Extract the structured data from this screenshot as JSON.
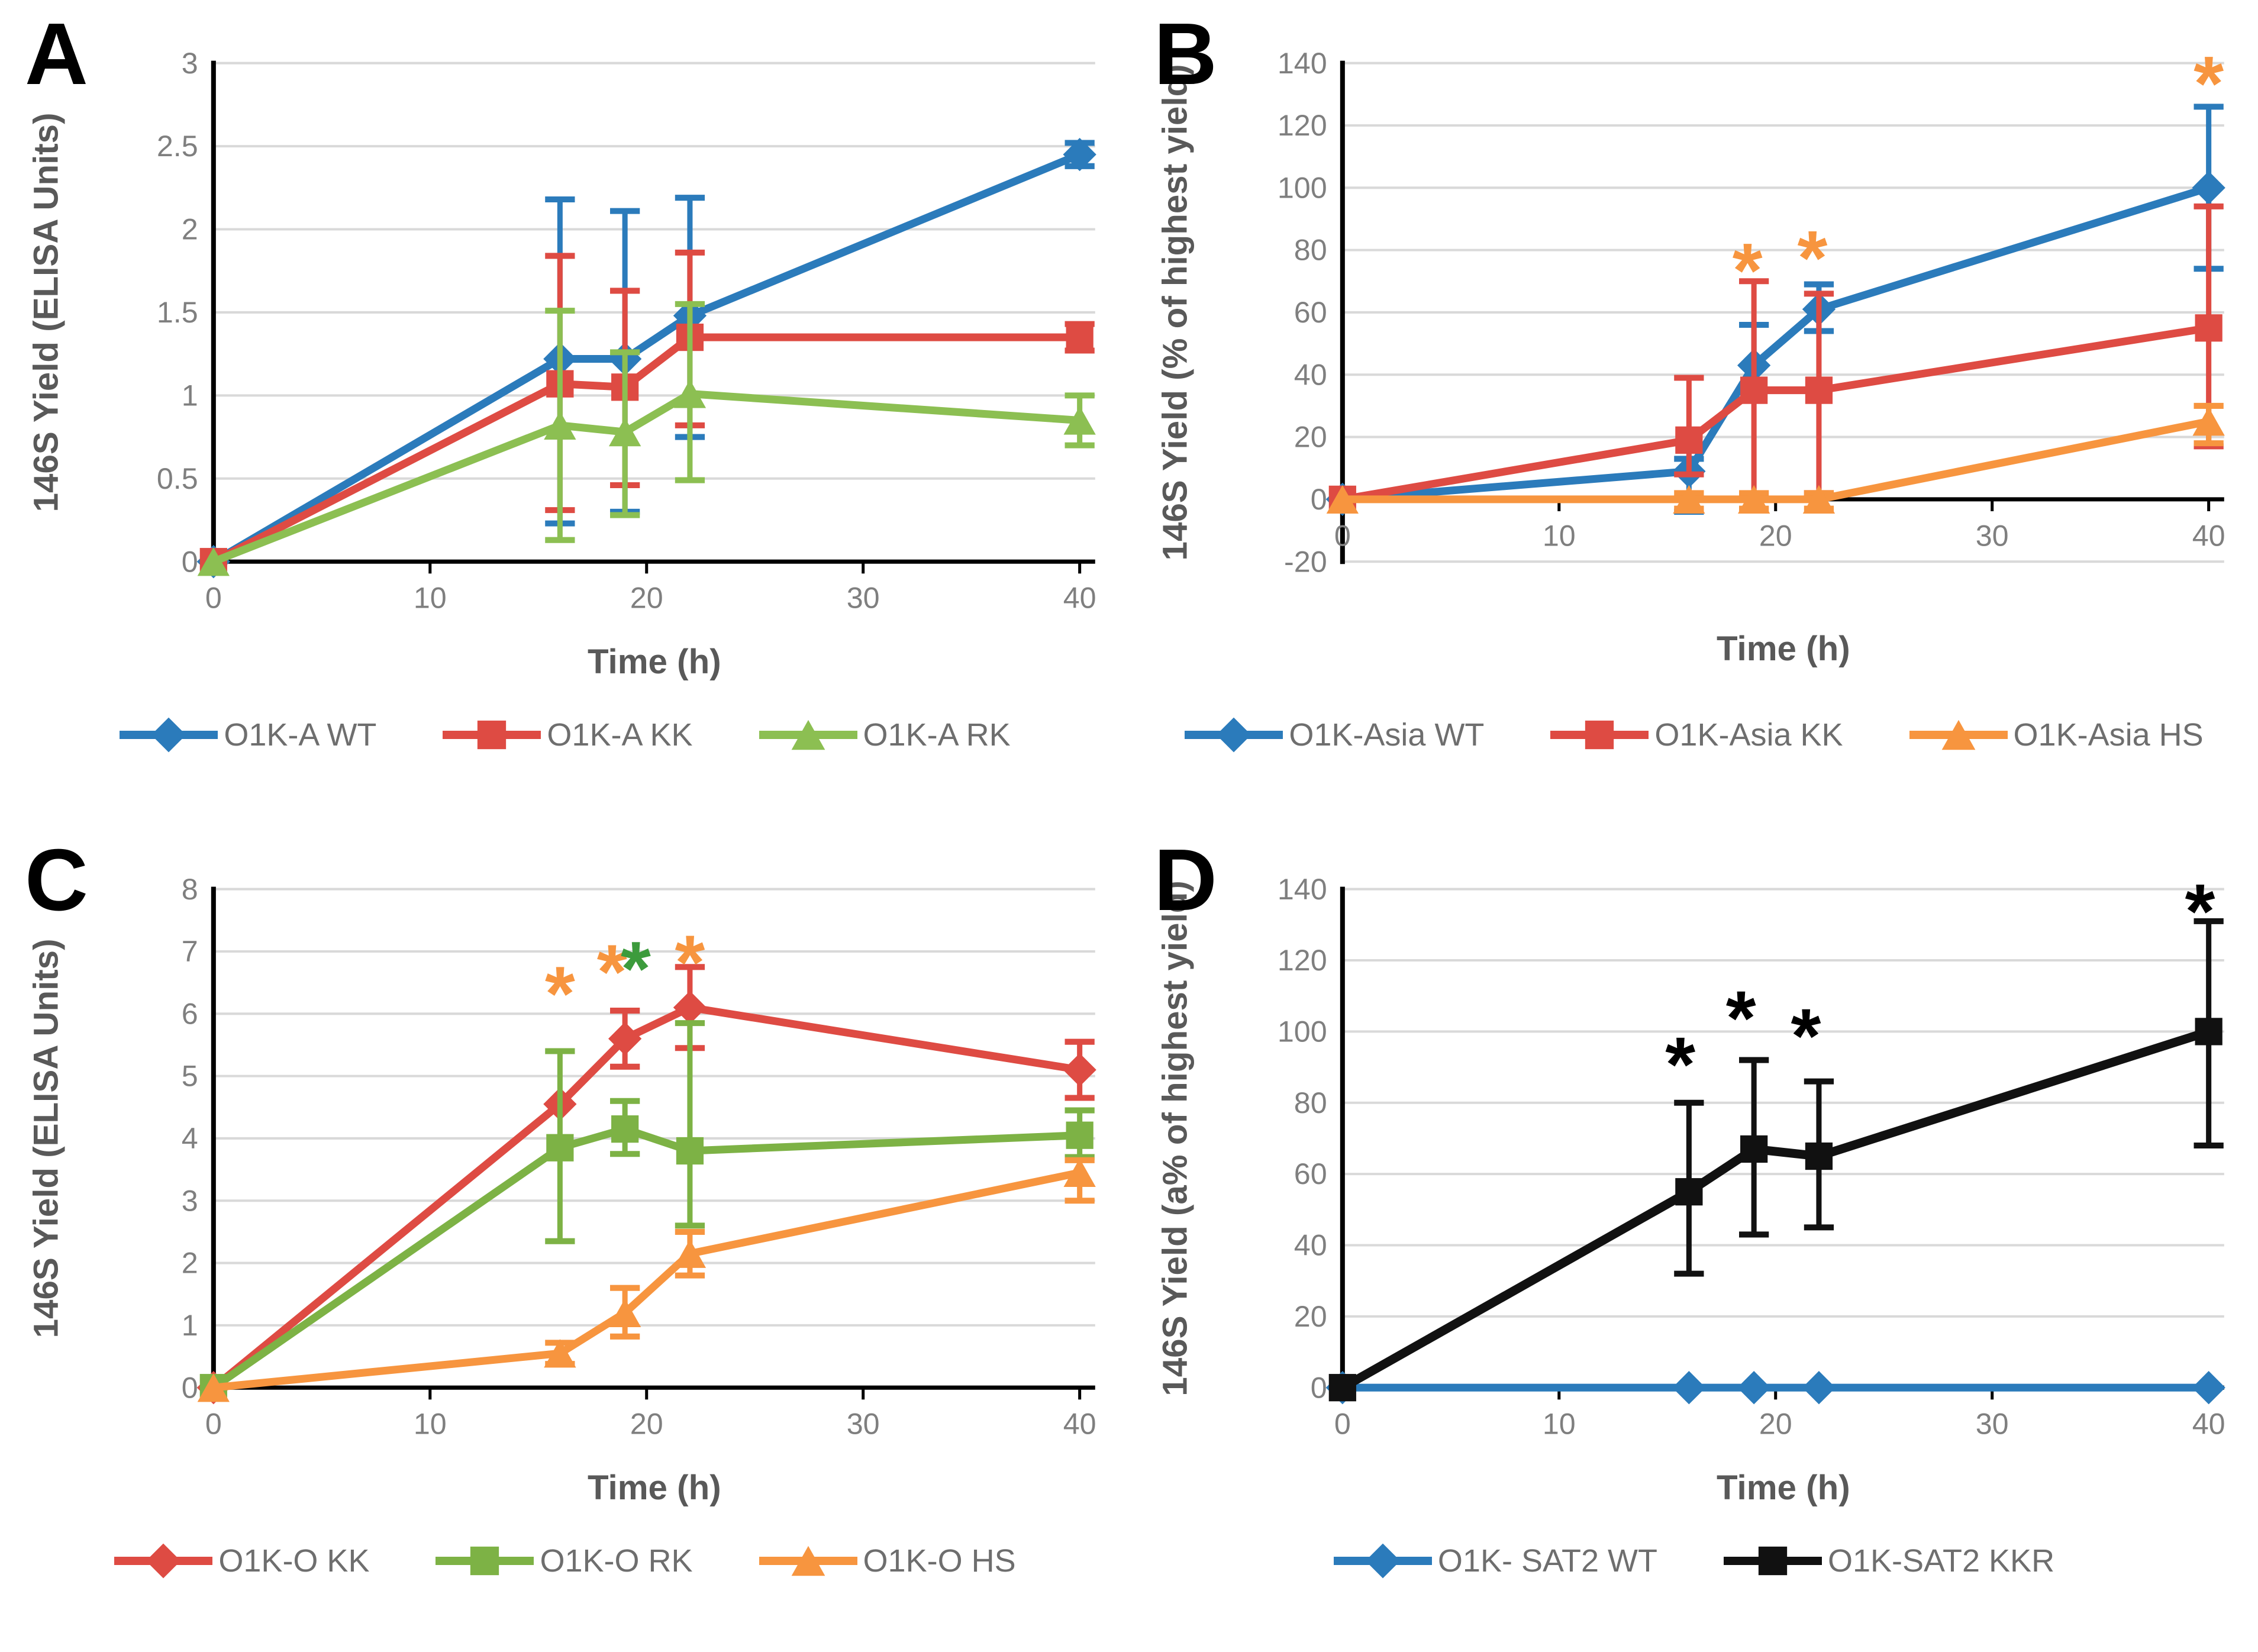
{
  "theme": {
    "background": "#ffffff",
    "grid_color": "#d9d9d9",
    "axis_color": "#000000",
    "tick_text_color": "#7f7f7f",
    "axis_title_color": "#595959",
    "legend_text_color": "#6e6e6e"
  },
  "chart_data": [
    {
      "panel_label": "A",
      "type": "line",
      "title": "",
      "xlabel": "Time (h)",
      "ylabel": "146S Yield (ELISA Units)",
      "xlim": [
        0,
        40
      ],
      "ylim": [
        0,
        3
      ],
      "xticks": [
        0,
        10,
        20,
        30,
        40
      ],
      "yticks": [
        0,
        0.5,
        1,
        1.5,
        2,
        2.5,
        3
      ],
      "grid": true,
      "legend_position": "bottom",
      "x": [
        0,
        16,
        19,
        22,
        40
      ],
      "series": [
        {
          "name": "O1K-A WT",
          "color": "#2b7bbb",
          "marker": "diamond",
          "line_width": 13,
          "y": [
            0,
            1.22,
            1.22,
            1.48,
            2.45
          ],
          "lo": [
            0,
            0.23,
            0.3,
            0.75,
            2.38
          ],
          "hi": [
            0,
            2.18,
            2.11,
            2.19,
            2.52
          ]
        },
        {
          "name": "O1K-A KK",
          "color": "#de4b43",
          "marker": "square",
          "line_width": 13,
          "y": [
            0,
            1.07,
            1.05,
            1.35,
            1.35
          ],
          "lo": [
            0,
            0.31,
            0.46,
            0.82,
            1.27
          ],
          "hi": [
            0,
            1.84,
            1.63,
            1.86,
            1.43
          ]
        },
        {
          "name": "O1K-A RK",
          "color": "#8cbf52",
          "marker": "triangle",
          "line_width": 13,
          "y": [
            0,
            0.82,
            0.78,
            1.01,
            0.85
          ],
          "lo": [
            0,
            0.13,
            0.28,
            0.49,
            0.7
          ],
          "hi": [
            0,
            1.51,
            1.26,
            1.55,
            1.0
          ]
        }
      ],
      "annotations": []
    },
    {
      "panel_label": "B",
      "type": "line",
      "title": "",
      "xlabel": "Time (h)",
      "ylabel": "146S Yield (% of highest yield)",
      "xlim": [
        0,
        40
      ],
      "ylim": [
        -20,
        140
      ],
      "xticks": [
        0,
        10,
        20,
        30,
        40
      ],
      "yticks": [
        -20,
        0,
        20,
        40,
        60,
        80,
        100,
        120,
        140
      ],
      "grid": true,
      "legend_position": "bottom",
      "x": [
        0,
        16,
        19,
        22,
        40
      ],
      "series": [
        {
          "name": "O1K-Asia WT",
          "color": "#2b7bbb",
          "marker": "diamond",
          "line_width": 13,
          "y": [
            0,
            9,
            43,
            61,
            100
          ],
          "lo": [
            0,
            -4,
            35,
            54,
            74
          ],
          "hi": [
            0,
            13,
            56,
            69,
            126
          ]
        },
        {
          "name": "O1K-Asia KK",
          "color": "#de4b43",
          "marker": "square",
          "line_width": 13,
          "y": [
            0,
            19,
            35,
            35,
            55
          ],
          "lo": [
            0,
            8,
            0,
            2,
            17
          ],
          "hi": [
            0,
            39,
            70,
            66,
            94
          ]
        },
        {
          "name": "O1K-Asia HS",
          "color": "#f7953f",
          "marker": "triangle",
          "line_width": 13,
          "y": [
            0,
            0,
            0,
            0,
            25
          ],
          "lo": [
            0,
            -3,
            -3,
            -3,
            18
          ],
          "hi": [
            0,
            2,
            2,
            2,
            30
          ]
        }
      ],
      "annotations": [
        {
          "x": 18.7,
          "y": 76,
          "text": "*",
          "color": "#f7953f"
        },
        {
          "x": 21.7,
          "y": 80,
          "text": "*",
          "color": "#f7953f"
        },
        {
          "x": 40,
          "y": 136,
          "text": "*",
          "color": "#f7953f"
        }
      ]
    },
    {
      "panel_label": "C",
      "type": "line",
      "title": "",
      "xlabel": "Time (h)",
      "ylabel": "146S Yield (ELISA Units)",
      "xlim": [
        0,
        40
      ],
      "ylim": [
        0,
        8
      ],
      "xticks": [
        0,
        10,
        20,
        30,
        40
      ],
      "yticks": [
        0,
        1,
        2,
        3,
        4,
        5,
        6,
        7,
        8
      ],
      "grid": true,
      "legend_position": "bottom",
      "x": [
        0,
        16,
        19,
        22,
        40
      ],
      "series": [
        {
          "name": "O1K-O KK",
          "color": "#de4b43",
          "marker": "diamond",
          "line_width": 13,
          "y": [
            0,
            4.55,
            5.6,
            6.1,
            5.1
          ],
          "lo": [
            0,
            4.55,
            5.15,
            5.45,
            4.65
          ],
          "hi": [
            0,
            4.55,
            6.05,
            6.75,
            5.55
          ]
        },
        {
          "name": "O1K-O RK",
          "color": "#7db245",
          "marker": "square",
          "line_width": 13,
          "y": [
            0,
            3.85,
            4.15,
            3.8,
            4.05
          ],
          "lo": [
            0,
            2.35,
            3.75,
            2.6,
            3.7
          ],
          "hi": [
            0,
            5.4,
            4.6,
            5.85,
            4.45
          ]
        },
        {
          "name": "O1K-O HS",
          "color": "#f7953f",
          "marker": "triangle",
          "line_width": 13,
          "y": [
            0,
            0.55,
            1.2,
            2.15,
            3.45
          ],
          "lo": [
            0,
            0.38,
            0.82,
            1.8,
            3.0
          ],
          "hi": [
            0,
            0.72,
            1.6,
            2.5,
            3.65
          ]
        }
      ],
      "annotations": [
        {
          "x": 16,
          "y": 6.45,
          "text": "*",
          "color": "#f7953f"
        },
        {
          "x": 18.4,
          "y": 6.8,
          "text": "*",
          "color": "#f7953f"
        },
        {
          "x": 19.5,
          "y": 6.85,
          "text": "*",
          "color": "#3c9b3c"
        },
        {
          "x": 22,
          "y": 6.95,
          "text": "*",
          "color": "#f7953f"
        }
      ]
    },
    {
      "panel_label": "D",
      "type": "line",
      "title": "",
      "xlabel": "Time (h)",
      "ylabel": "146S Yield (a% of highest yield)",
      "xlim": [
        0,
        40
      ],
      "ylim": [
        0,
        140
      ],
      "xticks": [
        0,
        10,
        20,
        30,
        40
      ],
      "yticks": [
        0,
        20,
        40,
        60,
        80,
        100,
        120,
        140
      ],
      "grid": true,
      "legend_position": "bottom",
      "x": [
        0,
        16,
        19,
        22,
        40
      ],
      "series": [
        {
          "name": "O1K- SAT2 WT",
          "color": "#2b7bbb",
          "marker": "diamond",
          "line_width": 13,
          "y": [
            0,
            0,
            0,
            0,
            0
          ],
          "lo": [
            0,
            0,
            0,
            0,
            0
          ],
          "hi": [
            0,
            0,
            0,
            0,
            0
          ]
        },
        {
          "name": "O1K-SAT2 KKR",
          "color": "#111111",
          "marker": "square",
          "line_width": 15,
          "y": [
            0,
            55,
            67,
            65,
            100
          ],
          "lo": [
            0,
            32,
            43,
            45,
            68
          ],
          "hi": [
            0,
            80,
            92,
            86,
            131
          ]
        }
      ],
      "annotations": [
        {
          "x": 15.6,
          "y": 93,
          "text": "*",
          "color": "#000000"
        },
        {
          "x": 18.4,
          "y": 106,
          "text": "*",
          "color": "#000000"
        },
        {
          "x": 21.4,
          "y": 101,
          "text": "*",
          "color": "#000000"
        },
        {
          "x": 39.6,
          "y": 136,
          "text": "*",
          "color": "#000000"
        }
      ]
    }
  ]
}
